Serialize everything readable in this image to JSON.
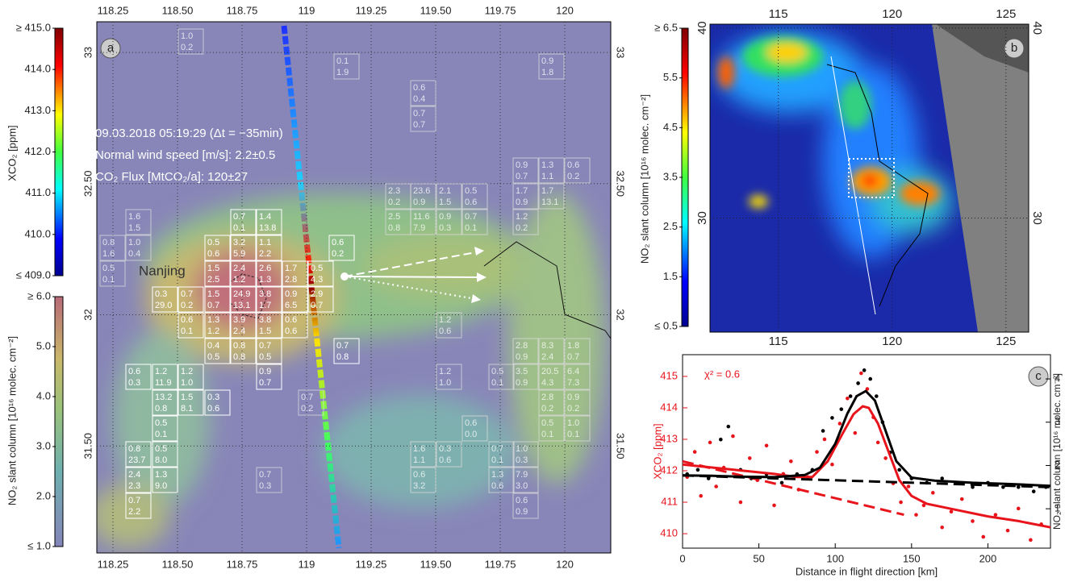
{
  "chart_data": [
    {
      "type": "map",
      "panel_label": "a",
      "text_lines": [
        "09.03.2018 05:19:29 (Δt = −35min)",
        "Normal wind speed [m/s]: 2.2±0.5",
        "CO₂ Flux [MtCO₂/a]: 120±27"
      ],
      "place_label": "Nanjing",
      "xlim": [
        118.1875,
        120.178
      ],
      "ylim": [
        31.092,
        33.117
      ],
      "xticks": [
        118.25,
        {
          "value": 118.5,
          "label": "118.50"
        },
        118.75,
        119,
        119.25,
        {
          "value": 119.5,
          "label": "119.50"
        },
        119.75,
        120
      ],
      "yticks": [
        {
          "value": 31.5,
          "label": "31.50"
        },
        32,
        {
          "value": 32.5,
          "label": "32.50"
        },
        33
      ],
      "grid": true,
      "cells": [
        [
          "0.7",
          "0.1"
        ],
        [
          "1.4",
          "13.8"
        ],
        [
          "0.5",
          "0.6"
        ],
        [
          "3.2",
          "5.9"
        ],
        [
          "1.1",
          "2.2"
        ],
        [
          "0.6",
          "0.2"
        ],
        [
          "1.5",
          "2.5"
        ],
        [
          "2.4",
          "1.2"
        ],
        [
          "2.6",
          "1.3"
        ],
        [
          "1.7",
          "2.8"
        ],
        [
          "0.5",
          "4.3"
        ],
        [
          "0.3",
          "29.0"
        ],
        [
          "0.7",
          "0.2"
        ],
        [
          "1.5",
          "0.7"
        ],
        [
          "24.9",
          "13.1"
        ],
        [
          "3.8",
          "1.7"
        ],
        [
          "0.9",
          "6.5"
        ],
        [
          "2.9",
          "0.7"
        ],
        [
          "0.6",
          "0.1"
        ],
        [
          "1.3",
          "1.2"
        ],
        [
          "3.9",
          "2.4"
        ],
        [
          "3.8",
          "1.5"
        ],
        [
          "0.6",
          "0.6"
        ],
        [
          "0.7",
          "0.8"
        ],
        [
          "0.4",
          "0.5"
        ],
        [
          "0.8",
          "0.8"
        ],
        [
          "0.7",
          "0.5"
        ],
        [
          "0.6",
          "0.3"
        ],
        [
          "1.2",
          "11.9"
        ],
        [
          "1.2",
          "1.0"
        ],
        [
          "0.9",
          "0.7"
        ],
        [
          "13.2",
          "0.8"
        ],
        [
          "1.5",
          "8.1"
        ],
        [
          "0.3",
          "0.6"
        ],
        [
          "0.5",
          "0.1"
        ],
        [
          "0.8",
          "23.7"
        ],
        [
          "0.5",
          "8.0"
        ],
        [
          "2.4",
          "2.3"
        ],
        [
          "1.3",
          "9.0"
        ],
        [
          "0.7",
          "2.2"
        ]
      ],
      "faint_cells": [
        [
          "1.0",
          "0.2"
        ],
        [
          "0.1",
          "1.9"
        ],
        [
          "0.6",
          "0.4"
        ],
        [
          "0.7",
          "0.7"
        ],
        [
          "0.9",
          "1.8"
        ],
        [
          "1.6",
          "1.5"
        ],
        [
          "1.0",
          "0.4"
        ],
        [
          "0.8",
          "1.6"
        ],
        [
          "0.5",
          "0.1"
        ],
        [
          "0.9",
          "0.7"
        ],
        [
          "1.3",
          "1.1"
        ],
        [
          "0.6",
          "0.2"
        ],
        [
          "1.7",
          "0.9"
        ],
        [
          "1.7",
          "13.1"
        ],
        [
          "2.3",
          "0.2"
        ],
        [
          "23.6",
          "0.9"
        ],
        [
          "2.1",
          "1.5"
        ],
        [
          "0.5",
          "0.6"
        ],
        [
          "2.5",
          "0.8"
        ],
        [
          "11.6",
          "7.9"
        ],
        [
          "0.9",
          "0.3"
        ],
        [
          "0.7",
          "0.1"
        ],
        [
          "1.2",
          "0.2"
        ],
        [
          "1.2",
          "0.6"
        ],
        [
          "1.2",
          "1.0"
        ],
        [
          "0.5",
          "0.1"
        ],
        [
          "3.5",
          "0.9"
        ],
        [
          "20.5",
          "4.3"
        ],
        [
          "6.4",
          "7.3"
        ],
        [
          "2.8",
          "0.9"
        ],
        [
          "8.3",
          "2.4"
        ],
        [
          "1.8",
          "0.7"
        ],
        [
          "2.8",
          "0.2"
        ],
        [
          "0.9",
          "0.2"
        ],
        [
          "0.5",
          "0.1"
        ],
        [
          "1.0",
          "0.1"
        ],
        [
          "0.7",
          "0.2"
        ],
        [
          "0.6",
          "0.0"
        ],
        [
          "1.6",
          "1.1"
        ],
        [
          "0.3",
          "0.6"
        ],
        [
          "0.6",
          "3.2"
        ],
        [
          "0.7",
          "0.1"
        ],
        [
          "1.0",
          "0.3"
        ],
        [
          "1.3",
          "0.6"
        ],
        [
          "7.9",
          "3.0"
        ],
        [
          "0.6",
          "0.9"
        ],
        [
          "0.7",
          "0.3"
        ]
      ],
      "colorbars": [
        {
          "label": "XCO₂ [ppm]",
          "lim": [
            409,
            415
          ],
          "ticks": [
            {
              "value": 415,
              "label": "≥ 415.0"
            },
            {
              "value": 414,
              "label": "414.0"
            },
            {
              "value": 413,
              "label": "413.0"
            },
            {
              "value": 412,
              "label": "412.0"
            },
            {
              "value": 411,
              "label": "411.0"
            },
            {
              "value": 410,
              "label": "410.0"
            },
            {
              "value": 409,
              "label": "≤ 409.0"
            }
          ]
        },
        {
          "label": "NO₂ slant column [10¹⁶ molec. cm⁻²]",
          "lim": [
            1,
            6
          ],
          "ticks": [
            {
              "value": 6,
              "label": "≥ 6.0"
            },
            {
              "value": 5,
              "label": "5.0"
            },
            {
              "value": 4,
              "label": "4.0"
            },
            {
              "value": 3,
              "label": "3.0"
            },
            {
              "value": 2,
              "label": "2.0"
            },
            {
              "value": 1,
              "label": "≤ 1.0"
            }
          ]
        }
      ]
    },
    {
      "type": "map",
      "panel_label": "b",
      "xlim": [
        112,
        126
      ],
      "ylim": [
        24,
        40.2
      ],
      "xticks": [
        115,
        120,
        125
      ],
      "yticks": [
        30,
        40
      ],
      "grid": true,
      "colorbars": [
        {
          "label": "NO₂ slant column [10¹⁶ molec. cm⁻²]",
          "lim": [
            0.5,
            6.5
          ],
          "ticks": [
            {
              "value": 6.5,
              "label": "≥ 6.5"
            },
            {
              "value": 5.5,
              "label": "5.5"
            },
            {
              "value": 4.5,
              "label": "4.5"
            },
            {
              "value": 3.5,
              "label": "3.5"
            },
            {
              "value": 2.5,
              "label": "2.5"
            },
            {
              "value": 1.5,
              "label": "1.5"
            },
            {
              "value": 0.5,
              "label": "≤ 0.5"
            }
          ]
        }
      ]
    },
    {
      "type": "line",
      "panel_label": "c",
      "annotation": "χ² = 0.6",
      "xlabel": "Distance in flight direction [km]",
      "ylabel": "XCO₂ [ppm]",
      "y2label": "NO₂ slant column [10¹⁶ molec. cm⁻²]",
      "xlim": [
        0,
        241
      ],
      "xticks": [
        0,
        50,
        100,
        150,
        200
      ],
      "ylim": [
        409.54,
        415.69
      ],
      "yticks": [
        410,
        411,
        412,
        413,
        414,
        415
      ],
      "y2lim": [
        0.09,
        4.56
      ],
      "y2ticks": [
        1,
        2,
        3,
        4
      ],
      "series": [
        {
          "mark": "points",
          "color": "#e8141c",
          "axis": "y",
          "x": [
            3,
            8,
            12,
            18,
            22,
            27,
            33,
            38,
            44,
            49,
            55,
            60,
            66,
            71,
            76,
            82,
            88,
            93,
            98,
            103,
            108,
            113,
            117,
            121,
            125,
            128,
            133,
            138,
            143,
            148,
            153,
            158,
            164,
            170,
            176,
            183,
            190,
            197,
            205,
            213,
            220,
            228,
            235
          ],
          "values": [
            411.8,
            412.6,
            411.2,
            412.9,
            411.5,
            412.1,
            413.1,
            411.0,
            412.4,
            411.7,
            412.8,
            410.9,
            411.9,
            412.3,
            411.4,
            411.8,
            412.6,
            413.0,
            412.2,
            413.5,
            414.3,
            413.2,
            415.1,
            414.6,
            413.7,
            412.9,
            412.4,
            411.6,
            411.0,
            411.5,
            410.6,
            410.9,
            411.3,
            410.2,
            410.7,
            411.1,
            410.4,
            409.9,
            410.6,
            410.1,
            410.8,
            409.8,
            410.3
          ]
        },
        {
          "mark": "points",
          "color": "#000000",
          "axis": "y2",
          "x": [
            3,
            10,
            17,
            25,
            30,
            38,
            45,
            55,
            65,
            75,
            85,
            92,
            98,
            104,
            110,
            115,
            119,
            123,
            127,
            131,
            136,
            142,
            150,
            160,
            170,
            180,
            190,
            200,
            210,
            220,
            230,
            238
          ],
          "values": [
            1.8,
            1.9,
            1.7,
            2.6,
            2.9,
            1.9,
            1.7,
            1.8,
            1.6,
            1.8,
            1.9,
            2.8,
            3.1,
            3.3,
            3.6,
            3.9,
            4.2,
            4.0,
            3.6,
            3.0,
            2.3,
            1.9,
            1.7,
            1.6,
            1.7,
            1.6,
            1.5,
            1.6,
            1.5,
            1.5,
            1.4,
            1.5
          ]
        },
        {
          "mark": "line",
          "style": "solid",
          "color": "#e8141c",
          "axis": "y",
          "x": [
            0,
            20,
            40,
            60,
            75,
            85,
            95,
            105,
            112,
            118,
            122,
            128,
            135,
            142,
            150,
            160,
            180,
            200,
            220,
            241
          ],
          "values": [
            412.2,
            412.1,
            412.0,
            411.9,
            411.8,
            411.8,
            412.3,
            413.2,
            413.8,
            414.05,
            414.0,
            413.5,
            412.6,
            411.7,
            411.2,
            410.95,
            410.75,
            410.55,
            410.4,
            410.2
          ]
        },
        {
          "mark": "line",
          "style": "dashed",
          "color": "#e8141c",
          "axis": "y",
          "x": [
            0,
            145
          ],
          "values": [
            412.3,
            410.6
          ]
        },
        {
          "mark": "line",
          "style": "solid",
          "color": "#000000",
          "axis": "y2",
          "x": [
            0,
            20,
            40,
            60,
            80,
            90,
            100,
            108,
            114,
            120,
            126,
            132,
            140,
            150,
            165,
            190,
            215,
            241
          ],
          "values": [
            1.77,
            1.76,
            1.74,
            1.73,
            1.78,
            1.95,
            2.5,
            3.2,
            3.6,
            3.72,
            3.5,
            2.9,
            2.1,
            1.72,
            1.65,
            1.6,
            1.57,
            1.53
          ]
        },
        {
          "mark": "line",
          "style": "dashed",
          "color": "#000000",
          "axis": "y2",
          "x": [
            0,
            241
          ],
          "values": [
            1.77,
            1.5
          ]
        }
      ]
    }
  ]
}
